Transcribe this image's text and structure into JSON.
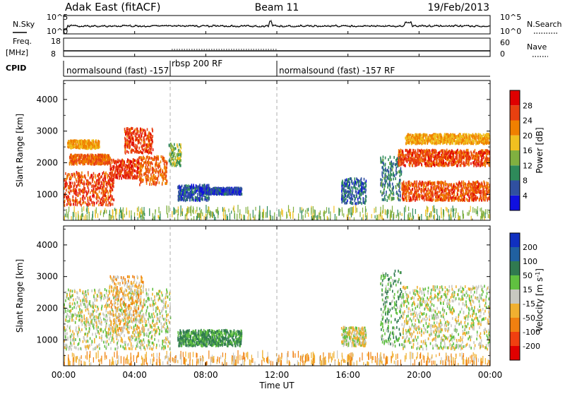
{
  "header": {
    "station": "Adak East (fitACF)",
    "beam": "Beam 11",
    "date": "19/Feb/2013"
  },
  "noise_panel": {
    "left_label": "N.Sky",
    "right_label": "N.Search",
    "left_ticks": [
      "10^5",
      "10^0"
    ],
    "right_ticks": [
      "10^5",
      "10^0"
    ]
  },
  "freq_panel": {
    "left_label_1": "Freq.",
    "left_label_2": "[MHz]",
    "right_label": "Nave",
    "left_ticks": [
      "18",
      "8"
    ],
    "right_ticks": [
      "60",
      "0"
    ]
  },
  "cpid_panel": {
    "label": "CPID",
    "segments": [
      {
        "label": "normalsound (fast) -157",
        "start_hour": 0
      },
      {
        "label": "rbsp 200 RF",
        "start_hour": 6
      },
      {
        "label": "normalsound (fast) -157 RF",
        "start_hour": 12
      }
    ]
  },
  "axes": {
    "x_ticks": [
      "00:00",
      "04:00",
      "08:00",
      "12:00",
      "16:00",
      "20:00",
      "00:00"
    ],
    "x_label": "Time UT",
    "y_label": "Slant Range [km]",
    "y_ticks": [
      "1000",
      "2000",
      "3000",
      "4000"
    ]
  },
  "power_colorbar": {
    "label": "Power [dB]",
    "ticks": [
      "4",
      "8",
      "12",
      "16",
      "20",
      "24",
      "28"
    ],
    "colors": [
      "#1010e0",
      "#3050a0",
      "#2e8a5a",
      "#80b040",
      "#f0c020",
      "#f08000",
      "#e84010",
      "#e00000"
    ]
  },
  "velocity_colorbar": {
    "label": "Velocity [m s",
    "label_sup": "-1",
    "label_end": "]",
    "ticks": [
      "200",
      "100",
      "50",
      "15",
      "-15",
      "-50",
      "-100",
      "-200"
    ],
    "colors": [
      "#1030c0",
      "#2060a0",
      "#307a50",
      "#60c040",
      "#c8c8c0",
      "#f0b030",
      "#f08010",
      "#f04010",
      "#e00000"
    ]
  },
  "chart_data": [
    {
      "type": "heatmap",
      "title": "Power",
      "xlabel": "",
      "ylabel": "Slant Range [km]",
      "xlim": [
        0,
        24
      ],
      "ylim": [
        180,
        4600
      ],
      "colorbar_label": "Power [dB]",
      "regions": [
        {
          "t": [
            0.0,
            2.8
          ],
          "r": [
            650,
            1700
          ],
          "value": 26
        },
        {
          "t": [
            0.3,
            2.6
          ],
          "r": [
            1950,
            2250
          ],
          "value": 24
        },
        {
          "t": [
            0.2,
            2.0
          ],
          "r": [
            2450,
            2700
          ],
          "value": 20
        },
        {
          "t": [
            2.6,
            4.2
          ],
          "r": [
            1500,
            2100
          ],
          "value": 27
        },
        {
          "t": [
            3.4,
            5.0
          ],
          "r": [
            2300,
            3100
          ],
          "value": 26
        },
        {
          "t": [
            4.2,
            5.8
          ],
          "r": [
            1300,
            2200
          ],
          "value": 24
        },
        {
          "t": [
            5.9,
            6.6
          ],
          "r": [
            1900,
            2600
          ],
          "value": 14
        },
        {
          "t": [
            6.4,
            8.2
          ],
          "r": [
            800,
            1300
          ],
          "value": 6
        },
        {
          "t": [
            7.6,
            10.0
          ],
          "r": [
            1000,
            1200
          ],
          "value": 5
        },
        {
          "t": [
            15.6,
            17.0
          ],
          "r": [
            700,
            1500
          ],
          "value": 7
        },
        {
          "t": [
            17.8,
            19.0
          ],
          "r": [
            800,
            2200
          ],
          "value": 9
        },
        {
          "t": [
            18.8,
            24.0
          ],
          "r": [
            1900,
            2400
          ],
          "value": 26
        },
        {
          "t": [
            19.0,
            24.0
          ],
          "r": [
            800,
            1400
          ],
          "value": 25
        },
        {
          "t": [
            19.2,
            24.0
          ],
          "r": [
            2600,
            2900
          ],
          "value": 20
        },
        {
          "t": [
            0.0,
            24.0
          ],
          "r": [
            200,
            550
          ],
          "value": 14
        }
      ]
    },
    {
      "type": "heatmap",
      "title": "Velocity",
      "xlabel": "Time UT",
      "ylabel": "Slant Range [km]",
      "xlim": [
        0,
        24
      ],
      "ylim": [
        180,
        4600
      ],
      "colorbar_label": "Velocity [m s-1]",
      "regions": [
        {
          "t": [
            0.0,
            6.0
          ],
          "r": [
            700,
            2600
          ],
          "value": 0
        },
        {
          "t": [
            2.5,
            4.5
          ],
          "r": [
            1200,
            3000
          ],
          "value": -30
        },
        {
          "t": [
            6.4,
            10.0
          ],
          "r": [
            800,
            1300
          ],
          "value": 60
        },
        {
          "t": [
            15.6,
            17.0
          ],
          "r": [
            800,
            1400
          ],
          "value": 0
        },
        {
          "t": [
            17.8,
            19.0
          ],
          "r": [
            800,
            3200
          ],
          "value": 40
        },
        {
          "t": [
            19.0,
            24.0
          ],
          "r": [
            700,
            2700
          ],
          "value": 0
        },
        {
          "t": [
            0.0,
            24.0
          ],
          "r": [
            200,
            550
          ],
          "value": -40
        }
      ]
    }
  ]
}
